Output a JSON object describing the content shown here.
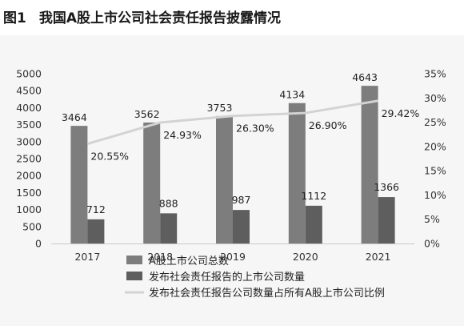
{
  "figure": {
    "number": "图1",
    "title": "我国A股上市公司社会责任报告披露情况"
  },
  "chart_data": {
    "type": "bar",
    "categories": [
      "2017",
      "2018",
      "2019",
      "2020",
      "2021"
    ],
    "series": [
      {
        "name": "A股上市公司总数",
        "type": "bar",
        "axis": "left",
        "color": "#7d7d7d",
        "values": [
          3464,
          3562,
          3753,
          4134,
          4643
        ]
      },
      {
        "name": "发布社会责任报告的上市公司数量",
        "type": "bar",
        "axis": "left",
        "color": "#5e5e5e",
        "values": [
          712,
          888,
          987,
          1112,
          1366
        ]
      },
      {
        "name": "发布社会责任报告公司数量占所有A股上市公司比例",
        "type": "line",
        "axis": "right",
        "color": "#d3d3d3",
        "values": [
          20.55,
          24.93,
          26.3,
          26.9,
          29.42
        ],
        "labels": [
          "20.55%",
          "24.93%",
          "26.30%",
          "26.90%",
          "29.42%"
        ]
      }
    ],
    "y_left": {
      "min": 0,
      "max": 5000,
      "step": 500,
      "ticks": [
        "0",
        "500",
        "1000",
        "1500",
        "2000",
        "2500",
        "3000",
        "3500",
        "4000",
        "4500",
        "5000"
      ]
    },
    "y_right": {
      "min": 0,
      "max": 35,
      "step": 5,
      "ticks": [
        "0%",
        "5%",
        "10%",
        "15%",
        "20%",
        "25%",
        "30%",
        "35%"
      ]
    },
    "grid": false,
    "legend_position": "bottom"
  }
}
